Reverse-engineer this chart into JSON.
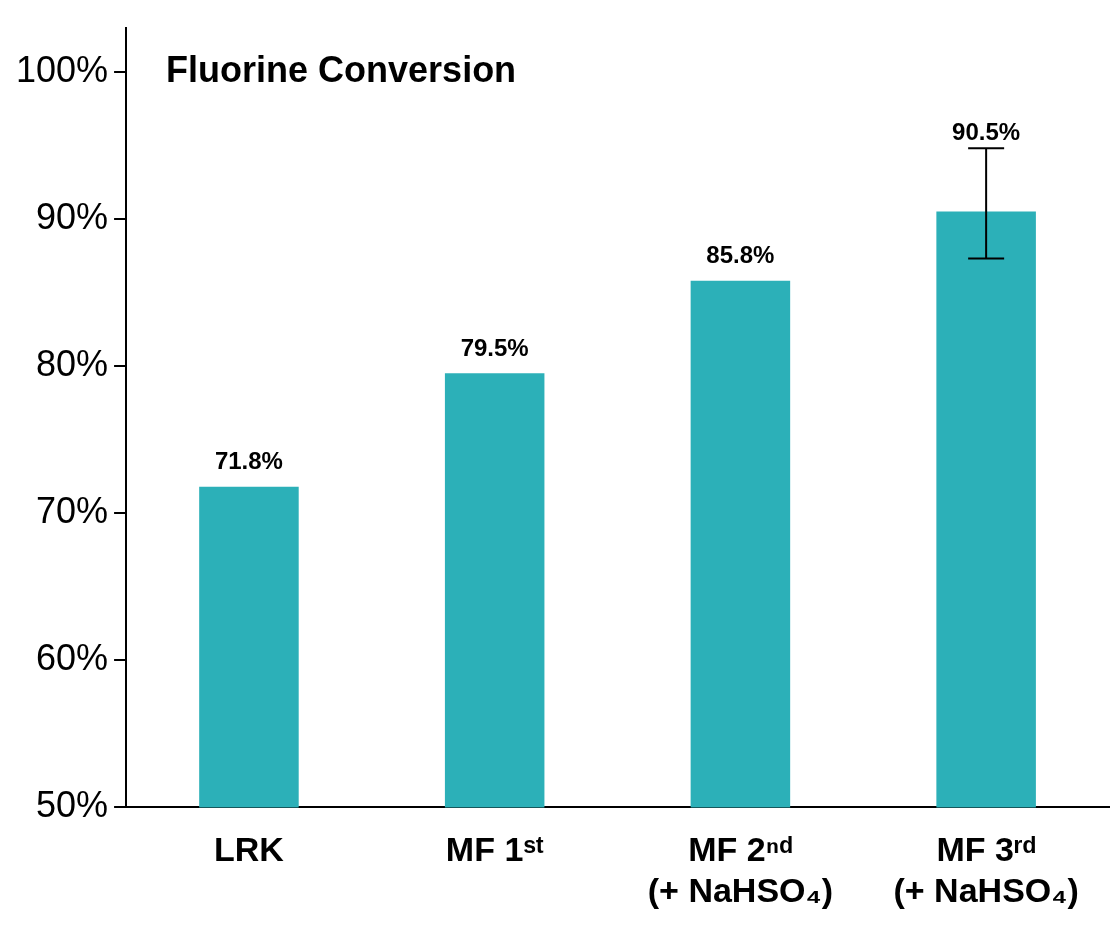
{
  "chart_data": {
    "type": "bar",
    "title": "Fluorine Conversion",
    "categories": [
      "LRK",
      "MF 1ˢᵗ",
      "MF 2ⁿᵈ\n(+ NaHSO₄)",
      "MF 3ʳᵈ\n(+ NaHSO₄)"
    ],
    "values": [
      71.8,
      79.5,
      85.8,
      90.5
    ],
    "color": "#2cb0b8",
    "errors": [
      null,
      null,
      null,
      [
        87.3,
        94.8
      ]
    ],
    "value_labels": [
      "71.8%",
      "79.5%",
      "85.8%",
      "90.5%"
    ],
    "ylim": [
      50,
      103
    ],
    "yticks": [
      {
        "value": 50,
        "label": "50%"
      },
      {
        "value": 60,
        "label": "60%"
      },
      {
        "value": 70,
        "label": "70%"
      },
      {
        "value": 80,
        "label": "80%"
      },
      {
        "value": 90,
        "label": "90%"
      },
      {
        "value": 100,
        "label": "100%"
      }
    ],
    "grid": false,
    "legend": false
  }
}
